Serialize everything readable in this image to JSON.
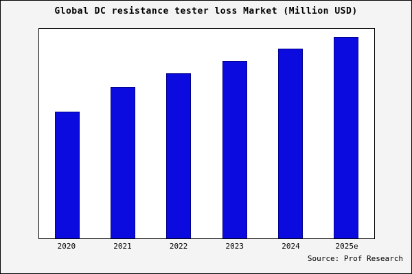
{
  "title": "Global DC resistance tester loss Market (Million USD)",
  "source": "Source: Prof Research",
  "colors": {
    "bar_fill": "#0b0be0",
    "bar_edge": "#00008b",
    "plot_background": "#ffffff",
    "outer_background": "#f4f4f4",
    "axis": "#000000"
  },
  "chart_data": {
    "type": "bar",
    "categories": [
      "2020",
      "2021",
      "2022",
      "2023",
      "2024",
      "2025e"
    ],
    "values": [
      63,
      75,
      82,
      88,
      94,
      100
    ],
    "title": "Global DC resistance tester loss Market (Million USD)",
    "xlabel": "",
    "ylabel": "",
    "ylim": [
      0,
      104
    ],
    "grid": false,
    "legend": false,
    "annotation": "Source: Prof Research"
  }
}
